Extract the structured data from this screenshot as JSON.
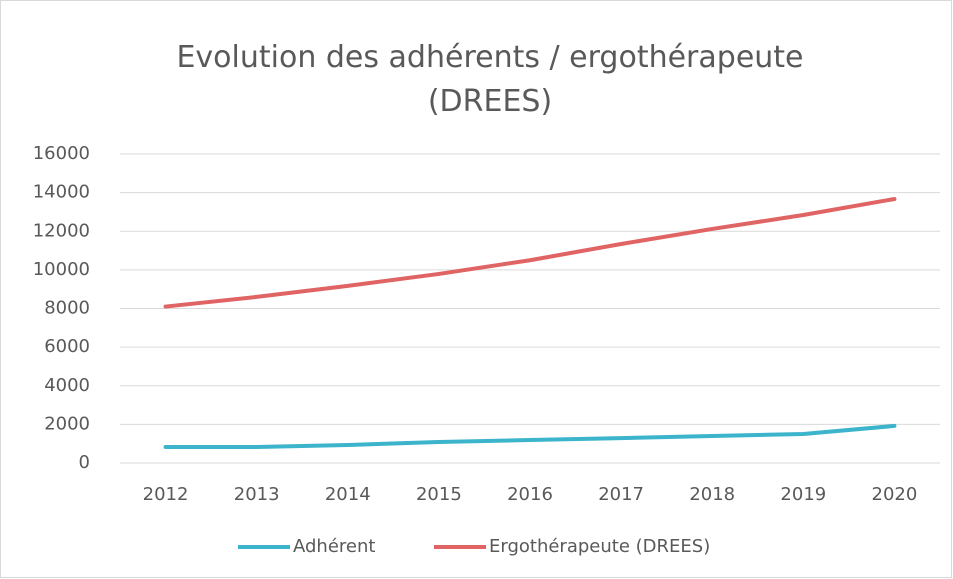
{
  "chart_data": {
    "type": "line",
    "title": "Evolution des adhérents / ergothérapeute (DREES)",
    "categories": [
      "2012",
      "2013",
      "2014",
      "2015",
      "2016",
      "2017",
      "2018",
      "2019",
      "2020"
    ],
    "series": [
      {
        "name": "Adhérent",
        "color": "#3cb4cb",
        "values": [
          830,
          830,
          930,
          1090,
          1190,
          1290,
          1400,
          1500,
          1920
        ]
      },
      {
        "name": "Ergothérapeute (DREES)",
        "color": "#e06464",
        "values": [
          8100,
          8600,
          9170,
          9790,
          10500,
          11340,
          12120,
          12840,
          13670
        ]
      }
    ],
    "ylim": [
      0,
      16000
    ],
    "yticks": [
      0,
      2000,
      4000,
      6000,
      8000,
      10000,
      12000,
      14000,
      16000
    ],
    "grid": true,
    "legend": "bottom"
  }
}
